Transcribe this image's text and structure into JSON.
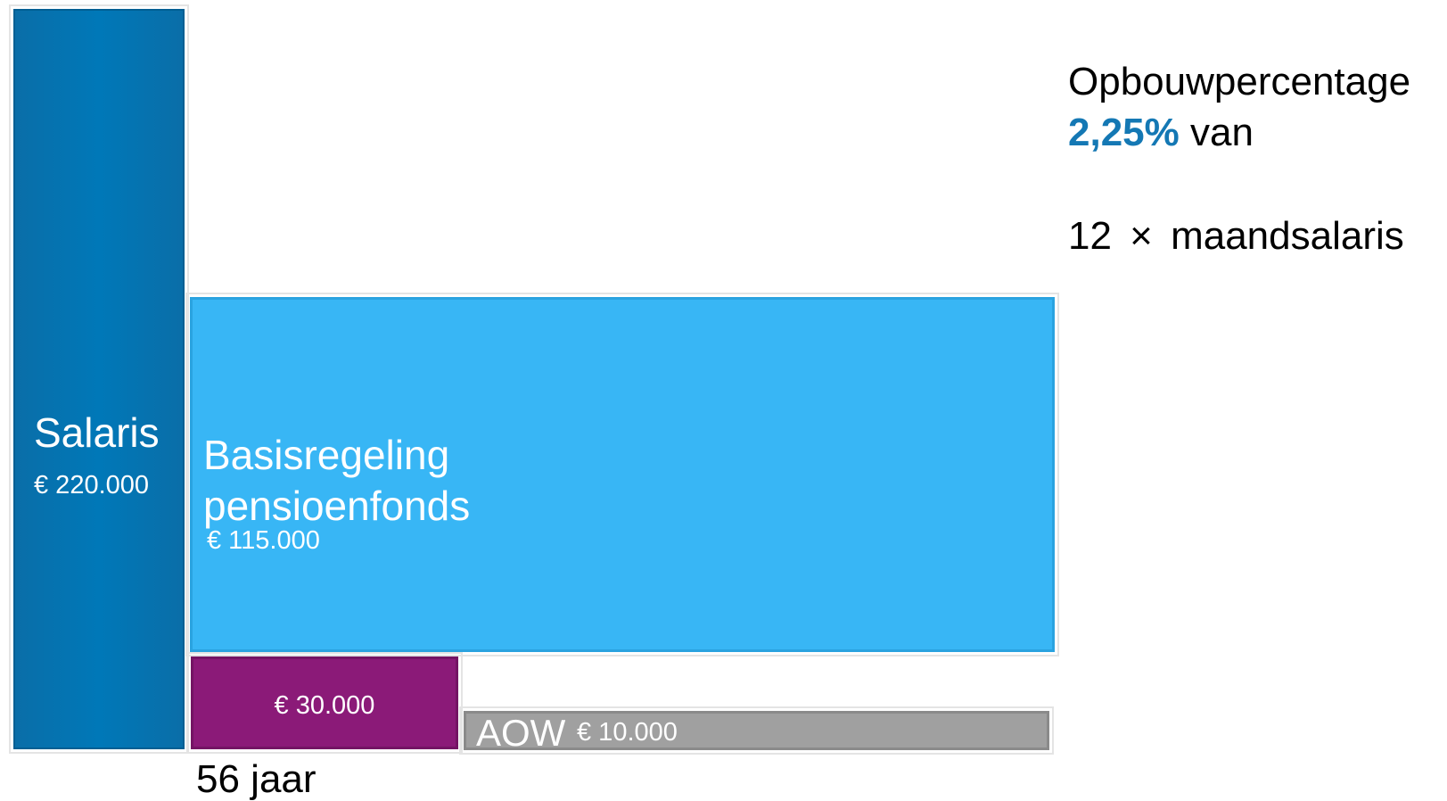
{
  "salary": {
    "label": "Salaris",
    "amount": "€ 220.000"
  },
  "base_scheme": {
    "label": "Basisregeling pensioenfonds",
    "amount": "€ 115.000"
  },
  "extra": {
    "amount": "€ 30.000"
  },
  "aow": {
    "label": "AOW",
    "amount": "€ 10.000"
  },
  "age": "56 jaar",
  "accrual": {
    "title": "Opbouwpercentage",
    "rate": "2,25%",
    "of": "van",
    "basis": "12 × maandsalaris"
  }
}
